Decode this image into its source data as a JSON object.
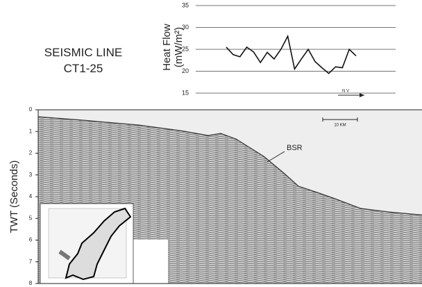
{
  "chart_data": [
    {
      "type": "line",
      "title": "SEISMIC LINE CT1-25",
      "ylabel": "Heat Flow (mW/m²)",
      "categories": [
        null,
        null,
        null,
        null,
        null,
        null,
        null,
        null,
        null,
        null,
        null,
        null,
        null,
        null,
        null,
        null,
        null,
        null,
        null,
        null
      ],
      "values": [
        25.5,
        23.8,
        23.3,
        25.5,
        24.4,
        22,
        24.3,
        22.8,
        25,
        28,
        20.5,
        22.8,
        25,
        22.2,
        20.8,
        19.5,
        21,
        20.8,
        25,
        23.5
      ],
      "color": "#111111",
      "ylim": [
        15,
        35
      ],
      "yticks": [
        15,
        20,
        25,
        30,
        35
      ],
      "grid": true,
      "annotations": [
        "N V"
      ]
    },
    {
      "type": "seismic-section",
      "ylabel": "TWT (Seconds)",
      "ylim": [
        0,
        8
      ],
      "yticks": [
        0,
        1,
        2,
        3,
        4,
        5,
        6,
        7,
        8
      ],
      "annotations": [
        "BSR",
        "10 KM"
      ]
    }
  ]
}
